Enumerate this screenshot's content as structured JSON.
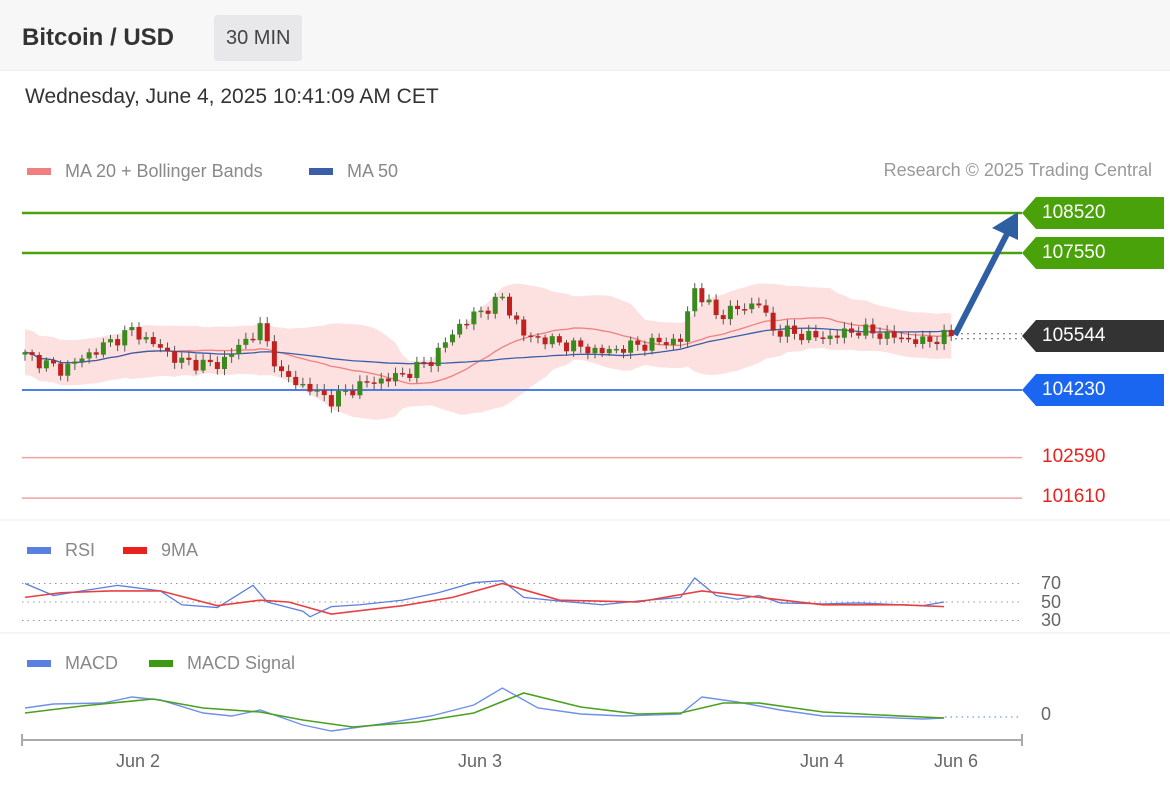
{
  "header": {
    "title": "Bitcoin / USD",
    "timeframe": "30 MIN",
    "datetime": "Wednesday, June 4, 2025 10:41:09 AM CET"
  },
  "legend": {
    "ma20": "MA 20 + Bollinger Bands",
    "ma50": "MA 50",
    "credit": "Research © 2025 Trading Central",
    "rsi": "RSI",
    "rsi_ma": "9MA",
    "macd": "MACD",
    "macd_signal": "MACD Signal"
  },
  "colors": {
    "resistance": "#4aa20a",
    "current": "#333333",
    "pivot": "#1a66f0",
    "support": "#e8201e",
    "ma20": "#f08080",
    "ma50": "#3a5fa8",
    "arrow": "#2f5fa3"
  },
  "chart_data": {
    "type": "candlestick",
    "bars": 131,
    "price_path": [
      [
        0,
        105078
      ],
      [
        5,
        104715
      ],
      [
        15,
        105684
      ],
      [
        22,
        104909
      ],
      [
        27,
        104836
      ],
      [
        33,
        105733
      ],
      [
        36,
        104594
      ],
      [
        43,
        103988
      ],
      [
        47,
        104352
      ],
      [
        53,
        104594
      ],
      [
        57,
        104957
      ],
      [
        61,
        105806
      ],
      [
        67,
        106460
      ],
      [
        70,
        105563
      ],
      [
        75,
        105369
      ],
      [
        81,
        105151
      ],
      [
        86,
        105321
      ],
      [
        92,
        105442
      ],
      [
        94,
        106702
      ],
      [
        97,
        106048
      ],
      [
        103,
        106339
      ],
      [
        105,
        105684
      ],
      [
        112,
        105490
      ],
      [
        117,
        105684
      ],
      [
        126,
        105393
      ],
      [
        130,
        105563
      ]
    ],
    "levels": {
      "resistance": [
        108520,
        107550
      ],
      "current": 105544,
      "pivot": 104230,
      "support": [
        102590,
        101610
      ]
    },
    "x_ticks": [
      {
        "label": "Jun 2",
        "bar": 16
      },
      {
        "label": "Jun 3",
        "bar": 64
      },
      {
        "label": "Jun 4",
        "bar": 112
      },
      {
        "label": "Jun 6",
        "bar": 131
      }
    ],
    "rsi": {
      "ticks": [
        70,
        50,
        30
      ],
      "rsi": [
        [
          0,
          70
        ],
        [
          4,
          57
        ],
        [
          8,
          62
        ],
        [
          13,
          68
        ],
        [
          19,
          62
        ],
        [
          22,
          47
        ],
        [
          27,
          44
        ],
        [
          32,
          68
        ],
        [
          34,
          50
        ],
        [
          39,
          40
        ],
        [
          40,
          34
        ],
        [
          43,
          45
        ],
        [
          47,
          47
        ],
        [
          53,
          52
        ],
        [
          58,
          60
        ],
        [
          63,
          71
        ],
        [
          67,
          73
        ],
        [
          70,
          55
        ],
        [
          75,
          51
        ],
        [
          81,
          47
        ],
        [
          86,
          51
        ],
        [
          92,
          55
        ],
        [
          94,
          76
        ],
        [
          97,
          57
        ],
        [
          100,
          53
        ],
        [
          103,
          57
        ],
        [
          106,
          49
        ],
        [
          112,
          48
        ],
        [
          117,
          49
        ],
        [
          126,
          46
        ],
        [
          129,
          50
        ]
      ],
      "ma9": [
        [
          0,
          55
        ],
        [
          5,
          60
        ],
        [
          12,
          62
        ],
        [
          19,
          62
        ],
        [
          27,
          46
        ],
        [
          33,
          52
        ],
        [
          37,
          50
        ],
        [
          43,
          37
        ],
        [
          53,
          46
        ],
        [
          60,
          55
        ],
        [
          67,
          70
        ],
        [
          75,
          52
        ],
        [
          86,
          50
        ],
        [
          95,
          62
        ],
        [
          103,
          55
        ],
        [
          112,
          47
        ],
        [
          123,
          47
        ],
        [
          129,
          45
        ]
      ]
    },
    "macd": {
      "zero_label": "0",
      "macd": [
        [
          0,
          9
        ],
        [
          4,
          13
        ],
        [
          11,
          14
        ],
        [
          15,
          20
        ],
        [
          19,
          17
        ],
        [
          25,
          4
        ],
        [
          29,
          1
        ],
        [
          33,
          7
        ],
        [
          39,
          -8
        ],
        [
          43,
          -14
        ],
        [
          50,
          -7
        ],
        [
          57,
          1
        ],
        [
          63,
          12
        ],
        [
          67,
          29
        ],
        [
          72,
          9
        ],
        [
          78,
          3
        ],
        [
          84,
          1
        ],
        [
          92,
          3
        ],
        [
          95,
          20
        ],
        [
          100,
          15
        ],
        [
          106,
          7
        ],
        [
          112,
          1
        ],
        [
          119,
          0
        ],
        [
          126,
          -2
        ],
        [
          129,
          -1
        ]
      ],
      "signal": [
        [
          0,
          4
        ],
        [
          8,
          11
        ],
        [
          18,
          18
        ],
        [
          25,
          9
        ],
        [
          33,
          5
        ],
        [
          39,
          -3
        ],
        [
          46,
          -10
        ],
        [
          55,
          -5
        ],
        [
          63,
          4
        ],
        [
          70,
          24
        ],
        [
          78,
          10
        ],
        [
          86,
          3
        ],
        [
          92,
          4
        ],
        [
          98,
          14
        ],
        [
          103,
          14
        ],
        [
          112,
          5
        ],
        [
          120,
          2
        ],
        [
          129,
          -1
        ]
      ]
    }
  }
}
